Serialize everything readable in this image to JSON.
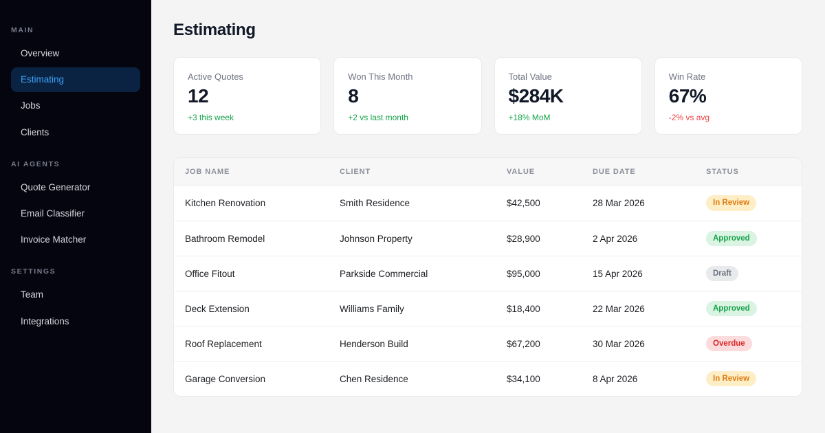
{
  "colors": {
    "sidebar_bg": "#050510",
    "active_item_bg": "#0b2342",
    "accent_blue": "#3ba2f8",
    "positive_green": "#16a34a",
    "negative_red": "#ef4444"
  },
  "sidebar": {
    "sections": [
      {
        "label": "MAIN",
        "items": [
          {
            "label": "Overview",
            "active": false
          },
          {
            "label": "Estimating",
            "active": true
          },
          {
            "label": "Jobs",
            "active": false
          },
          {
            "label": "Clients",
            "active": false
          }
        ]
      },
      {
        "label": "AI AGENTS",
        "items": [
          {
            "label": "Quote Generator",
            "active": false
          },
          {
            "label": "Email Classifier",
            "active": false
          },
          {
            "label": "Invoice Matcher",
            "active": false
          }
        ]
      },
      {
        "label": "SETTINGS",
        "items": [
          {
            "label": "Team",
            "active": false
          },
          {
            "label": "Integrations",
            "active": false
          }
        ]
      }
    ]
  },
  "header": {
    "title": "Estimating"
  },
  "stats": [
    {
      "label": "Active Quotes",
      "value": "12",
      "delta": "+3 this week",
      "trend": "up"
    },
    {
      "label": "Won This Month",
      "value": "8",
      "delta": "+2 vs last month",
      "trend": "up"
    },
    {
      "label": "Total Value",
      "value": "$284K",
      "delta": "+18% MoM",
      "trend": "up"
    },
    {
      "label": "Win Rate",
      "value": "67%",
      "delta": "-2% vs avg",
      "trend": "down"
    }
  ],
  "table": {
    "columns": [
      "Job Name",
      "Client",
      "Value",
      "Due Date",
      "Status"
    ],
    "rows": [
      {
        "job": "Kitchen Renovation",
        "client": "Smith Residence",
        "value": "$42,500",
        "due": "28 Mar 2026",
        "status": "In Review",
        "status_type": "in-review"
      },
      {
        "job": "Bathroom Remodel",
        "client": "Johnson Property",
        "value": "$28,900",
        "due": "2 Apr 2026",
        "status": "Approved",
        "status_type": "approved"
      },
      {
        "job": "Office Fitout",
        "client": "Parkside Commercial",
        "value": "$95,000",
        "due": "15 Apr 2026",
        "status": "Draft",
        "status_type": "draft"
      },
      {
        "job": "Deck Extension",
        "client": "Williams Family",
        "value": "$18,400",
        "due": "22 Mar 2026",
        "status": "Approved",
        "status_type": "approved"
      },
      {
        "job": "Roof Replacement",
        "client": "Henderson Build",
        "value": "$67,200",
        "due": "30 Mar 2026",
        "status": "Overdue",
        "status_type": "overdue"
      },
      {
        "job": "Garage Conversion",
        "client": "Chen Residence",
        "value": "$34,100",
        "due": "8 Apr 2026",
        "status": "In Review",
        "status_type": "in-review"
      }
    ]
  },
  "status_colors": {
    "in-review": {
      "bg": "#fdeec6",
      "text": "#e07b12"
    },
    "approved": {
      "bg": "#daf3e2",
      "text": "#16a34a"
    },
    "draft": {
      "bg": "#e9eaec",
      "text": "#6b7280"
    },
    "overdue": {
      "bg": "#fbdbdb",
      "text": "#dc2626"
    }
  }
}
